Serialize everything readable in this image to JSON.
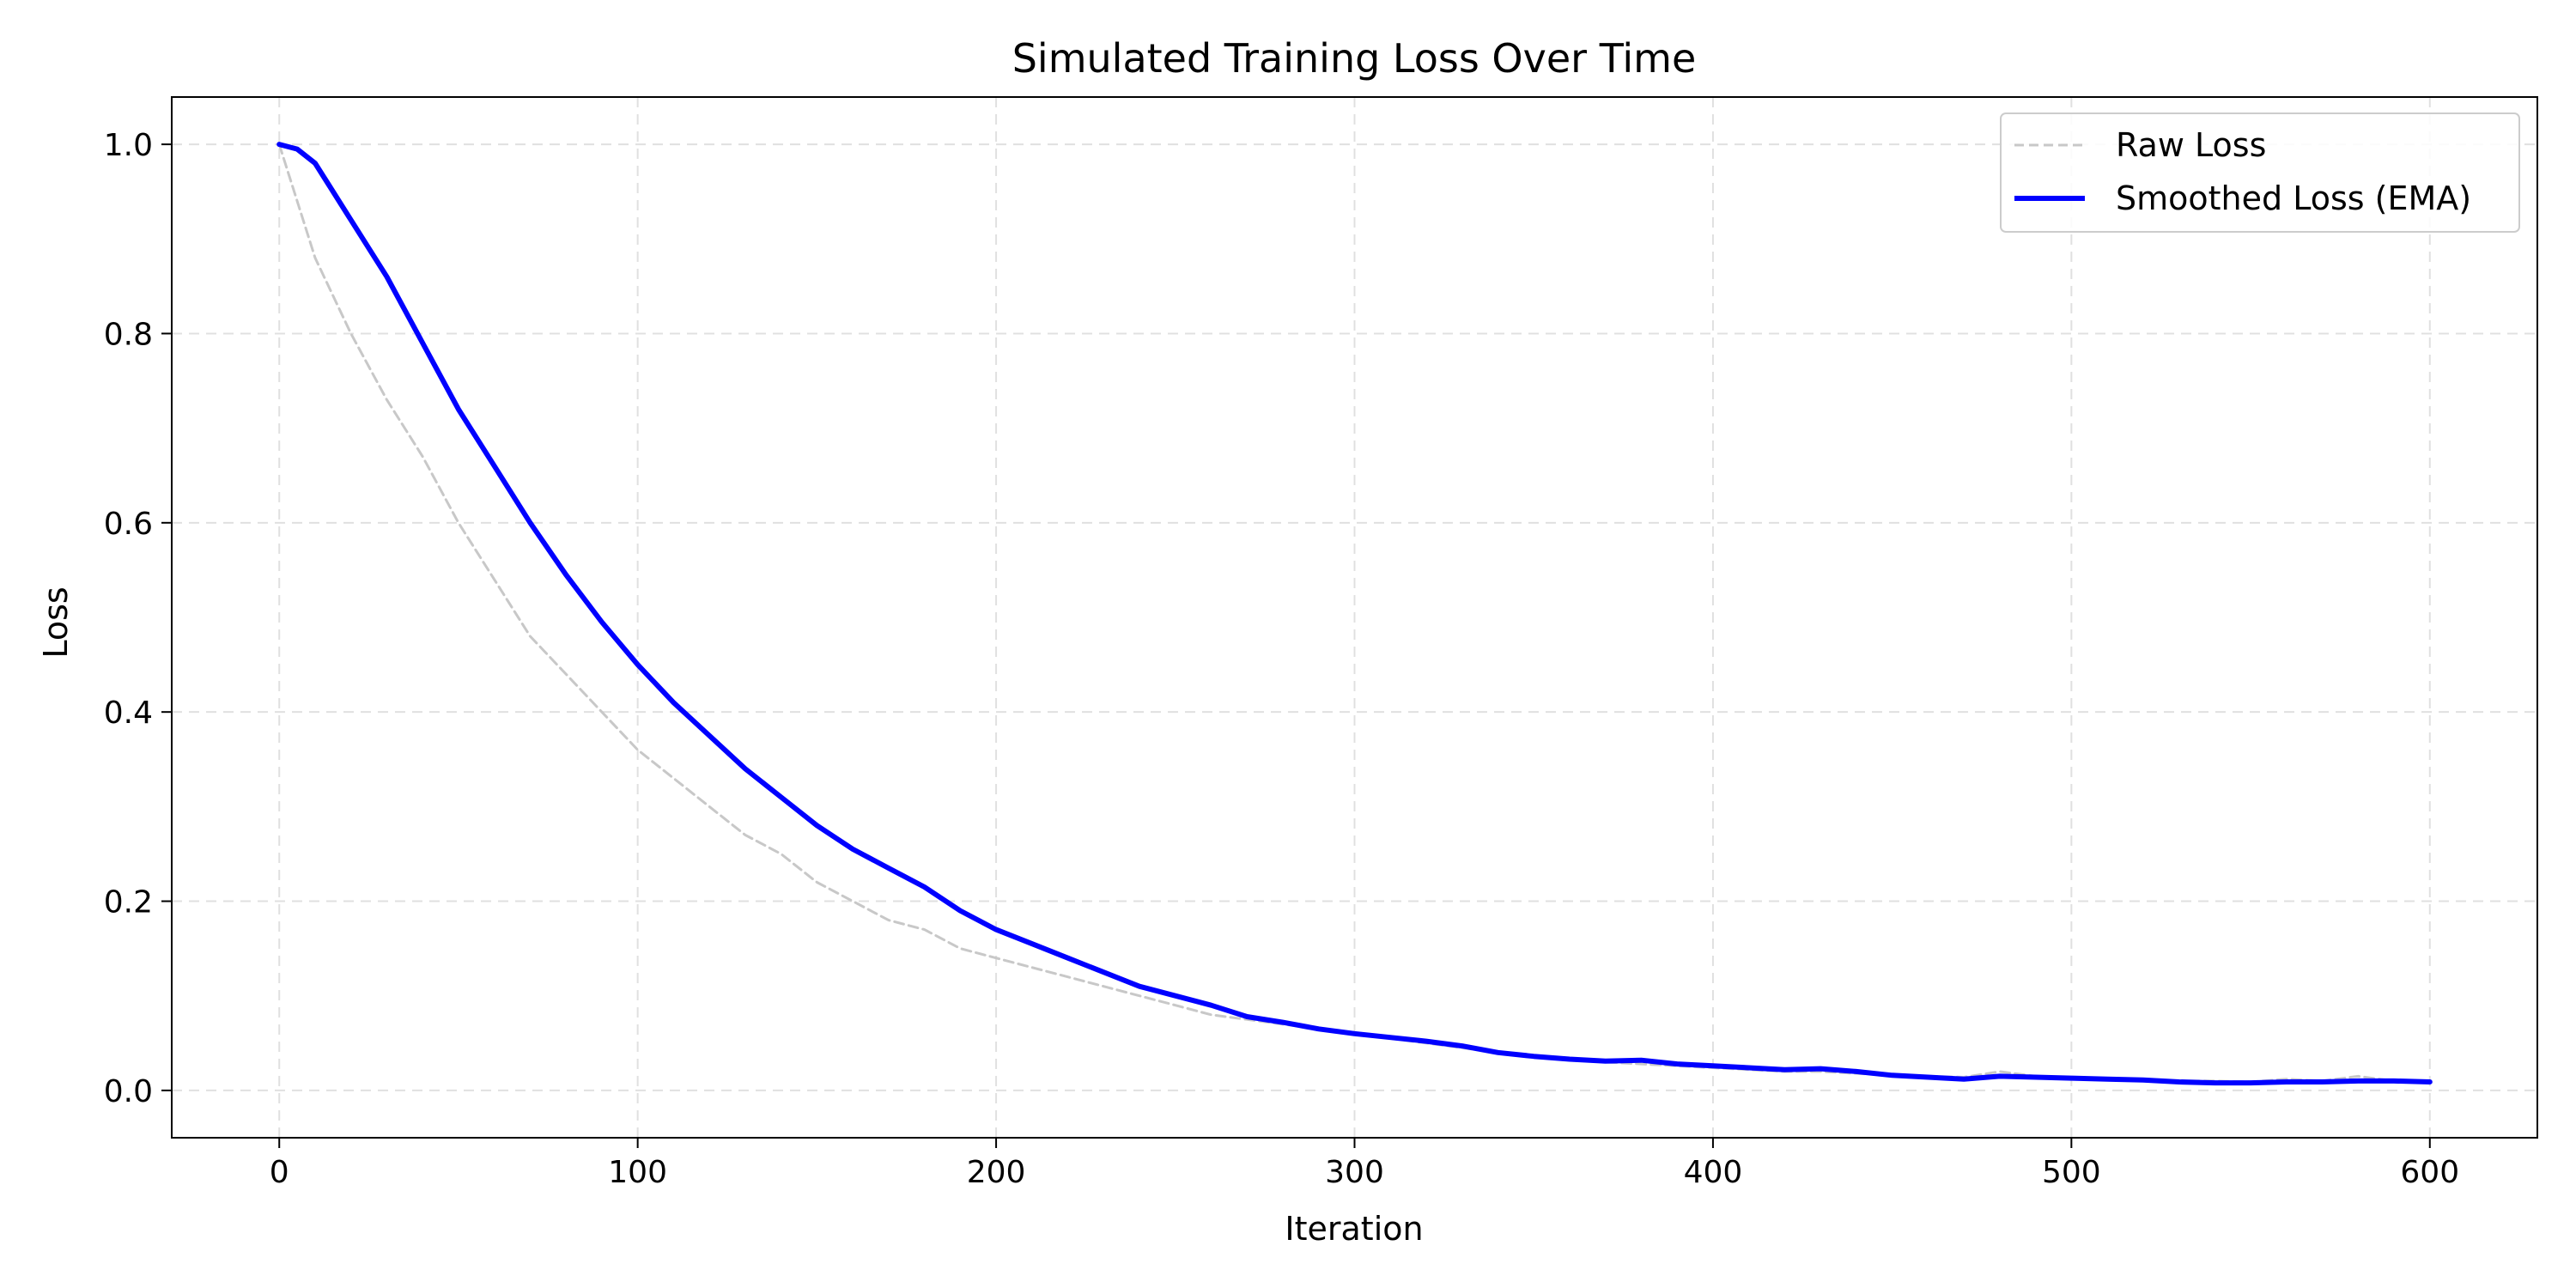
{
  "chart_data": {
    "type": "line",
    "title": "Simulated Training Loss Over Time",
    "xlabel": "Iteration",
    "ylabel": "Loss",
    "xlim": [
      -30,
      630
    ],
    "ylim": [
      -0.05,
      1.05
    ],
    "xticks": [
      0,
      100,
      200,
      300,
      400,
      500,
      600
    ],
    "yticks": [
      0.0,
      0.2,
      0.4,
      0.6,
      0.8,
      1.0
    ],
    "xtick_labels": [
      "0",
      "100",
      "200",
      "300",
      "400",
      "500",
      "600"
    ],
    "ytick_labels": [
      "0.0",
      "0.2",
      "0.4",
      "0.6",
      "0.8",
      "1.0"
    ],
    "grid": true,
    "legend_position": "top-right",
    "series": [
      {
        "name": "Raw Loss",
        "color": "#c8c8c8",
        "style": "dashed",
        "x": [
          0,
          10,
          20,
          30,
          40,
          50,
          60,
          70,
          80,
          90,
          100,
          110,
          120,
          130,
          140,
          150,
          160,
          170,
          180,
          190,
          200,
          210,
          220,
          230,
          240,
          250,
          260,
          270,
          280,
          290,
          300,
          310,
          320,
          330,
          340,
          350,
          360,
          370,
          380,
          390,
          400,
          410,
          420,
          430,
          440,
          450,
          460,
          470,
          480,
          490,
          500,
          510,
          520,
          530,
          540,
          550,
          560,
          570,
          580,
          590,
          600
        ],
        "values": [
          1.0,
          0.88,
          0.8,
          0.73,
          0.67,
          0.6,
          0.54,
          0.48,
          0.44,
          0.4,
          0.36,
          0.33,
          0.3,
          0.27,
          0.25,
          0.22,
          0.2,
          0.18,
          0.17,
          0.15,
          0.14,
          0.13,
          0.12,
          0.11,
          0.1,
          0.09,
          0.08,
          0.075,
          0.07,
          0.065,
          0.06,
          0.055,
          0.05,
          0.045,
          0.04,
          0.035,
          0.032,
          0.03,
          0.028,
          0.026,
          0.024,
          0.022,
          0.02,
          0.02,
          0.018,
          0.016,
          0.015,
          0.014,
          0.02,
          0.015,
          0.013,
          0.012,
          0.011,
          0.01,
          0.01,
          0.009,
          0.012,
          0.01,
          0.015,
          0.01,
          0.008
        ]
      },
      {
        "name": "Smoothed Loss (EMA)",
        "color": "#0000ff",
        "style": "solid",
        "x": [
          0,
          5,
          10,
          20,
          30,
          40,
          50,
          60,
          70,
          80,
          90,
          100,
          110,
          120,
          130,
          140,
          150,
          160,
          170,
          180,
          190,
          200,
          210,
          220,
          230,
          240,
          250,
          260,
          270,
          280,
          290,
          300,
          310,
          320,
          330,
          340,
          350,
          360,
          370,
          380,
          390,
          400,
          410,
          420,
          430,
          440,
          450,
          460,
          470,
          480,
          490,
          500,
          510,
          520,
          530,
          540,
          550,
          560,
          570,
          580,
          590,
          600
        ],
        "values": [
          1.0,
          0.995,
          0.98,
          0.92,
          0.86,
          0.79,
          0.72,
          0.66,
          0.6,
          0.545,
          0.495,
          0.45,
          0.41,
          0.375,
          0.34,
          0.31,
          0.28,
          0.255,
          0.235,
          0.215,
          0.19,
          0.17,
          0.155,
          0.14,
          0.125,
          0.11,
          0.1,
          0.09,
          0.078,
          0.072,
          0.065,
          0.06,
          0.056,
          0.052,
          0.047,
          0.04,
          0.036,
          0.033,
          0.031,
          0.032,
          0.028,
          0.026,
          0.024,
          0.022,
          0.023,
          0.02,
          0.016,
          0.014,
          0.012,
          0.015,
          0.014,
          0.013,
          0.012,
          0.011,
          0.009,
          0.008,
          0.008,
          0.009,
          0.009,
          0.01,
          0.01,
          0.009
        ]
      }
    ]
  }
}
